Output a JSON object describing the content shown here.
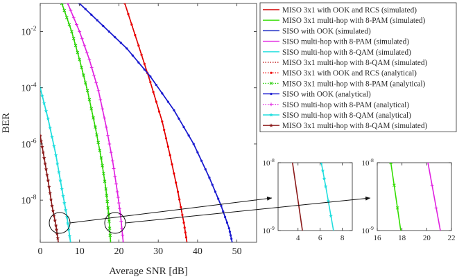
{
  "chart_data": [
    {
      "panel": "main",
      "type": "line",
      "xlabel": "Average SNR [dB]",
      "ylabel": "BER",
      "xlim": [
        0,
        55
      ],
      "ylim_log10": [
        -9.5,
        -1
      ],
      "y_scale": "log",
      "grid": false,
      "x_ticks": [
        "0",
        "10",
        "20",
        "30",
        "40",
        "50"
      ],
      "y_ticks": [
        {
          "value": -2,
          "label": "10",
          "exp": "-2"
        },
        {
          "value": -4,
          "label": "10",
          "exp": "-4"
        },
        {
          "value": -6,
          "label": "10",
          "exp": "-6"
        },
        {
          "value": -8,
          "label": "10",
          "exp": "-8"
        }
      ],
      "legend_position": "top-right",
      "series": [
        {
          "name": "MISO 3x1 with OOK and RCS (simulated)",
          "color": "#d40000",
          "marker": "none",
          "dash": "solid",
          "points": [
            [
              21.5,
              -1
            ],
            [
              25,
              -2.5
            ],
            [
              28,
              -3.8
            ],
            [
              31,
              -5.2
            ],
            [
              33,
              -6.4
            ],
            [
              35,
              -7.7
            ],
            [
              36.5,
              -8.8
            ],
            [
              37.3,
              -9.5
            ]
          ]
        },
        {
          "name": "MISO 3x1 multi-hop with 8-PAM (simulated)",
          "color": "#33dd00",
          "marker": "none",
          "dash": "solid",
          "points": [
            [
              5.5,
              -1
            ],
            [
              8,
              -2
            ],
            [
              10,
              -3
            ],
            [
              12,
              -4.1
            ],
            [
              14,
              -5.4
            ],
            [
              15.5,
              -6.5
            ],
            [
              16.7,
              -7.6
            ],
            [
              17.4,
              -8.5
            ],
            [
              17.9,
              -9.5
            ]
          ]
        },
        {
          "name": "SISO with OOK (simulated)",
          "color": "#1020c0",
          "marker": "none",
          "dash": "solid",
          "points": [
            [
              10,
              -1
            ],
            [
              16,
              -1.8
            ],
            [
              22,
              -2.6
            ],
            [
              28,
              -3.6
            ],
            [
              34,
              -4.8
            ],
            [
              39,
              -6
            ],
            [
              43,
              -7.2
            ],
            [
              46,
              -8.2
            ],
            [
              48,
              -9
            ],
            [
              48.8,
              -9.5
            ]
          ]
        },
        {
          "name": "SISO multi-hop with 8-PAM (simulated)",
          "color": "#e020e0",
          "marker": "none",
          "dash": "solid",
          "points": [
            [
              7,
              -1
            ],
            [
              10,
              -2
            ],
            [
              12.5,
              -3
            ],
            [
              14.8,
              -4.1
            ],
            [
              16.8,
              -5.4
            ],
            [
              18.4,
              -6.6
            ],
            [
              19.6,
              -7.7
            ],
            [
              20.4,
              -8.5
            ],
            [
              21.1,
              -9.5
            ]
          ]
        },
        {
          "name": "SISO multi-hop with 8-QAM (simulated)",
          "color": "#20dede",
          "marker": "none",
          "dash": "solid",
          "points": [
            [
              0,
              -4
            ],
            [
              2,
              -5.1
            ],
            [
              4,
              -6.4
            ],
            [
              5.5,
              -7.6
            ],
            [
              6.8,
              -8.6
            ],
            [
              7.7,
              -9.5
            ]
          ]
        },
        {
          "name": "MISO 3x1 multi-hop with 8-QAM (simulated)",
          "color": "#c02020",
          "marker": "none",
          "dash": "dotted",
          "points": []
        },
        {
          "name": "MISO 3x1 with OOK and RCS (analytical)",
          "color": "#ee0000",
          "marker": "dot",
          "dash": "dotted",
          "points": [
            [
              21.5,
              -1
            ],
            [
              25,
              -2.5
            ],
            [
              28,
              -3.8
            ],
            [
              31,
              -5.2
            ],
            [
              33,
              -6.4
            ],
            [
              35,
              -7.7
            ],
            [
              36.5,
              -8.8
            ],
            [
              37.3,
              -9.5
            ]
          ]
        },
        {
          "name": "MISO 3x1 multi-hop with 8-PAM (analytical)",
          "color": "#22cc00",
          "marker": "x",
          "dash": "dotted",
          "points": [
            [
              5.5,
              -1
            ],
            [
              8,
              -2
            ],
            [
              10,
              -3
            ],
            [
              12,
              -4.1
            ],
            [
              14,
              -5.4
            ],
            [
              15.5,
              -6.5
            ],
            [
              16.7,
              -7.6
            ],
            [
              17.4,
              -8.5
            ],
            [
              17.9,
              -9.5
            ]
          ]
        },
        {
          "name": "SISO with OOK (analytical)",
          "color": "#1a1ad0",
          "marker": "dot",
          "dash": "solid",
          "points": [
            [
              10,
              -1
            ],
            [
              16,
              -1.8
            ],
            [
              22,
              -2.6
            ],
            [
              28,
              -3.6
            ],
            [
              34,
              -4.8
            ],
            [
              39,
              -6
            ],
            [
              43,
              -7.2
            ],
            [
              46,
              -8.2
            ],
            [
              48,
              -9
            ],
            [
              48.8,
              -9.5
            ]
          ]
        },
        {
          "name": "SISO multi-hop with 8-PAM (analytical)",
          "color": "#e020e0",
          "marker": "plus",
          "dash": "dotted",
          "points": [
            [
              7,
              -1
            ],
            [
              10,
              -2
            ],
            [
              12.5,
              -3
            ],
            [
              14.8,
              -4.1
            ],
            [
              16.8,
              -5.4
            ],
            [
              18.4,
              -6.6
            ],
            [
              19.6,
              -7.7
            ],
            [
              20.4,
              -8.5
            ],
            [
              21.1,
              -9.5
            ]
          ]
        },
        {
          "name": "SISO multi-hop with 8-QAM (analytical)",
          "color": "#20dede",
          "marker": "star",
          "dash": "solid",
          "points": [
            [
              0,
              -4
            ],
            [
              2,
              -5.1
            ],
            [
              4,
              -6.4
            ],
            [
              5.5,
              -7.6
            ],
            [
              6.8,
              -8.6
            ],
            [
              7.7,
              -9.5
            ]
          ]
        },
        {
          "name": "MISO 3x1 multi-hop with 8-QAM (simulated)",
          "color": "#8b1a1a",
          "marker": "star",
          "dash": "solid",
          "points": [
            [
              0,
              -5.7
            ],
            [
              1,
              -6.5
            ],
            [
              2,
              -7.3
            ],
            [
              3,
              -8.2
            ],
            [
              4,
              -8.9
            ],
            [
              4.6,
              -9.5
            ]
          ]
        }
      ]
    },
    {
      "panel": "zoom-qam",
      "type": "line",
      "y_scale": "log",
      "xlim": [
        2.2,
        8.9
      ],
      "ylim_log10": [
        -9,
        -8
      ],
      "x_ticks": [
        "4",
        "6",
        "8"
      ],
      "y_ticks": [
        {
          "value": -8,
          "label": "10",
          "exp": "-8"
        },
        {
          "value": -9,
          "label": "10",
          "exp": "-9"
        }
      ],
      "series": [
        {
          "name": "MISO 3x1 multi-hop with 8-QAM (simulated)",
          "color": "#8b1a1a",
          "marker": "none",
          "points": [
            [
              3.5,
              -8
            ],
            [
              4.4,
              -9
            ]
          ]
        },
        {
          "name": "SISO multi-hop with 8-QAM (simulated)",
          "color": "#20dede",
          "marker": "star",
          "points": [
            [
              6.1,
              -8
            ],
            [
              6.5,
              -8.35
            ],
            [
              7.2,
              -9
            ]
          ]
        }
      ]
    },
    {
      "panel": "zoom-pam",
      "type": "line",
      "y_scale": "log",
      "xlim": [
        16,
        22
      ],
      "ylim_log10": [
        -9,
        -8
      ],
      "x_ticks": [
        "16",
        "18",
        "20",
        "22"
      ],
      "y_ticks": [
        {
          "value": -8,
          "label": "10",
          "exp": "-8"
        },
        {
          "value": -9,
          "label": "10",
          "exp": "-9"
        }
      ],
      "series": [
        {
          "name": "MISO 3x1 multi-hop with 8-PAM (simulated)",
          "color": "#33dd00",
          "marker": "x",
          "points": [
            [
              17.1,
              -8
            ],
            [
              17.9,
              -9
            ]
          ]
        },
        {
          "name": "SISO multi-hop with 8-PAM (simulated)",
          "color": "#e020e0",
          "marker": "plus",
          "points": [
            [
              20.1,
              -8
            ],
            [
              21.1,
              -9
            ]
          ]
        }
      ]
    }
  ]
}
